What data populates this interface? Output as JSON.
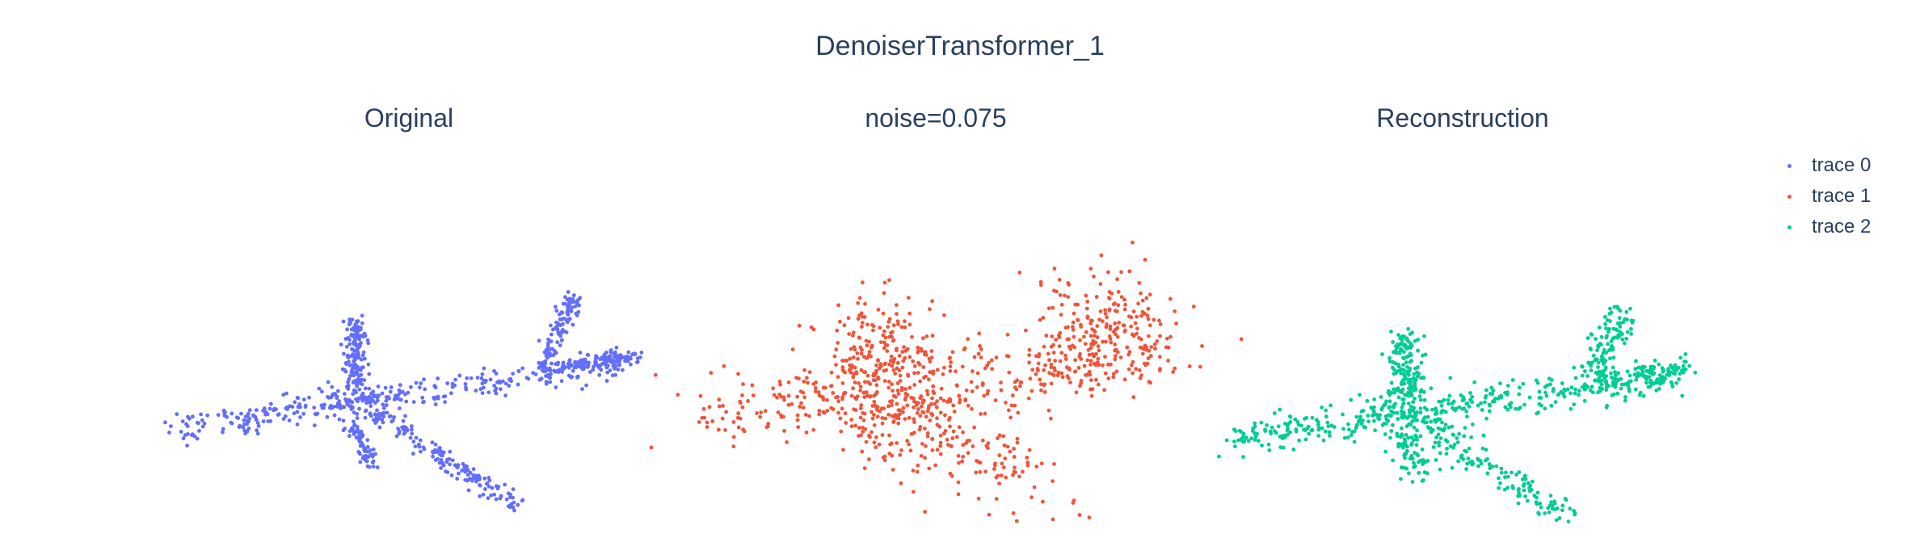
{
  "chart_data": {
    "type": "scatter",
    "title": "DenoiserTransformer_1",
    "subplots": [
      {
        "title": "Original",
        "trace": 0
      },
      {
        "title": "noise=0.075",
        "trace": 1
      },
      {
        "title": "Reconstruction",
        "trace": 2
      }
    ],
    "series": [
      {
        "name": "trace 0",
        "color": "#636efa",
        "points": 1000,
        "noise": 0.0
      },
      {
        "name": "trace 1",
        "color": "#ef553b",
        "points": 1000,
        "noise": 0.075
      },
      {
        "name": "trace 2",
        "color": "#00cc96",
        "points": 1000,
        "noise": 0.02
      }
    ],
    "legend": "top-right",
    "grid": false,
    "axes_visible": false
  }
}
